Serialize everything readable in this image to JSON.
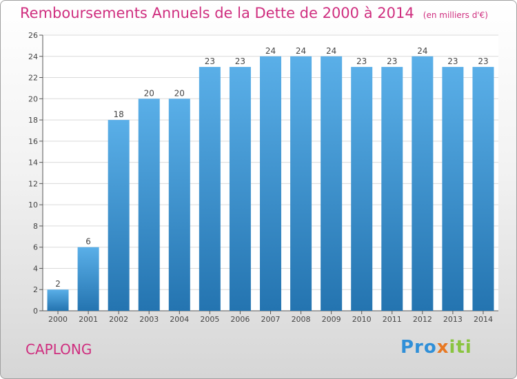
{
  "title": "Remboursements Annuels de la Dette de 2000 à 2014",
  "unit": "(en milliers d'€)",
  "town": "CAPLONG",
  "logo": {
    "part1": "Pro",
    "part2": "x",
    "part3": "iti"
  },
  "colors": {
    "title": "#cf2e7f",
    "bar_top": "#5aafe8",
    "bar_bottom": "#2474b0"
  },
  "chart_data": {
    "type": "bar",
    "title": "Remboursements Annuels de la Dette de 2000 à 2014",
    "ylabel": "en milliers d'€",
    "categories": [
      "2000",
      "2001",
      "2002",
      "2003",
      "2004",
      "2005",
      "2006",
      "2007",
      "2008",
      "2009",
      "2010",
      "2011",
      "2012",
      "2013",
      "2014"
    ],
    "values": [
      2,
      6,
      18,
      20,
      20,
      23,
      23,
      24,
      24,
      24,
      23,
      23,
      24,
      23,
      23
    ],
    "ylim": [
      0,
      26
    ],
    "yticks": [
      0,
      2,
      4,
      6,
      8,
      10,
      12,
      14,
      16,
      18,
      20,
      22,
      24,
      26
    ],
    "grid": true
  }
}
